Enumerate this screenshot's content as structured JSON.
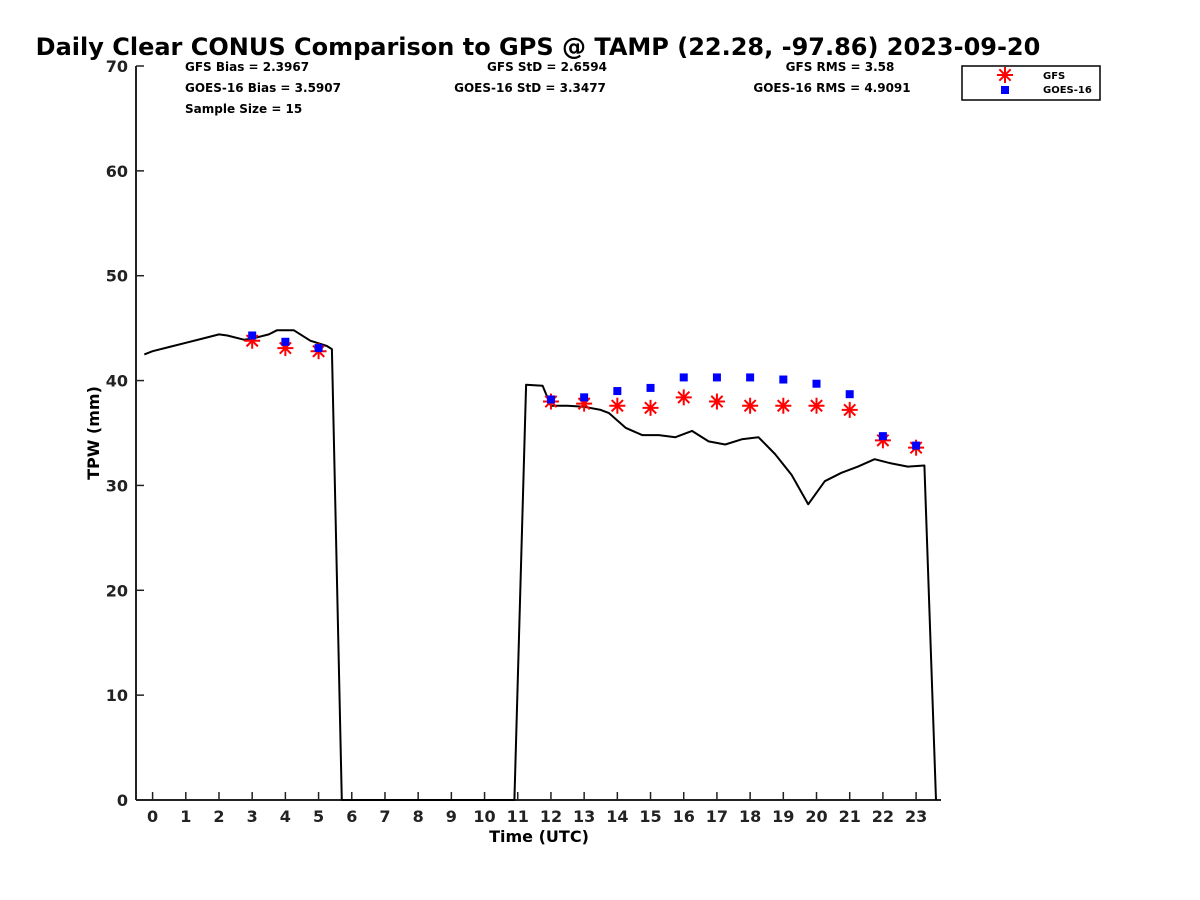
{
  "chart_data": {
    "type": "line",
    "title": "Daily Clear CONUS Comparison to GPS @ TAMP (22.28, -97.86) 2023-09-20",
    "xlabel": "Time (UTC)",
    "ylabel": "TPW (mm)",
    "xlim": [
      -0.5,
      23.75
    ],
    "ylim": [
      0,
      70
    ],
    "xticks": [
      "0",
      "1",
      "2",
      "3",
      "4",
      "5",
      "6",
      "7",
      "8",
      "9",
      "10",
      "11",
      "12",
      "13",
      "14",
      "15",
      "16",
      "17",
      "18",
      "19",
      "20",
      "21",
      "22",
      "23"
    ],
    "yticks": [
      "0",
      "10",
      "20",
      "30",
      "40",
      "50",
      "60",
      "70"
    ],
    "grid": false,
    "legend_position": "top-right",
    "stats": {
      "gfs_bias": "GFS Bias = 2.3967",
      "goes_bias": "GOES-16 Bias = 3.5907",
      "sample_size": "Sample Size = 15",
      "gfs_std": "GFS StD = 2.6594",
      "goes_std": "GOES-16 StD = 3.3477",
      "gfs_rms": "GFS RMS = 3.58",
      "goes_rms": "GOES-16 RMS = 4.9091"
    },
    "series": [
      {
        "kind": "line",
        "color": "#000000",
        "x": [
          -0.25,
          0,
          0.5,
          1,
          1.5,
          2,
          2.25,
          2.75,
          3,
          3.5,
          3.75,
          4.25,
          4.75,
          5.25,
          5.4,
          5.7,
          10.9,
          11.25,
          11.75,
          12,
          12.5,
          13,
          13.5,
          13.75,
          14.25,
          14.75,
          15.25,
          15.75,
          16.25,
          16.75,
          17.25,
          17.75,
          18.25,
          18.75,
          19.25,
          19.75,
          20.25,
          20.75,
          21.25,
          21.75,
          22.25,
          22.75,
          23.25,
          23.6
        ],
        "y": [
          42.5,
          42.8,
          43.2,
          43.6,
          44.0,
          44.4,
          44.3,
          43.9,
          44.0,
          44.4,
          44.8,
          44.8,
          43.8,
          43.3,
          43.0,
          0,
          0,
          39.6,
          39.5,
          37.6,
          37.6,
          37.5,
          37.2,
          36.9,
          35.5,
          34.8,
          34.8,
          34.6,
          35.2,
          34.2,
          33.9,
          34.4,
          34.6,
          33.0,
          31.0,
          28.2,
          30.4,
          31.2,
          31.8,
          32.5,
          32.1,
          31.8,
          31.9,
          0
        ]
      },
      {
        "name": "GFS",
        "kind": "scatter",
        "marker": "asterisk",
        "color": "#ff0000",
        "x": [
          3,
          4,
          5,
          12,
          13,
          14,
          15,
          16,
          17,
          18,
          19,
          20,
          21,
          22,
          23
        ],
        "y": [
          43.8,
          43.1,
          42.8,
          38.0,
          37.8,
          37.6,
          37.4,
          38.4,
          38.0,
          37.6,
          37.6,
          37.6,
          37.2,
          34.3,
          33.6
        ]
      },
      {
        "name": "GOES-16",
        "kind": "scatter",
        "marker": "square",
        "color": "#0000ff",
        "x": [
          3,
          4,
          5,
          12,
          13,
          14,
          15,
          16,
          17,
          18,
          19,
          20,
          21,
          22,
          23
        ],
        "y": [
          44.3,
          43.7,
          43.1,
          38.2,
          38.4,
          39.0,
          39.3,
          40.3,
          40.3,
          40.3,
          40.1,
          39.7,
          38.7,
          34.7,
          33.8
        ]
      }
    ]
  }
}
